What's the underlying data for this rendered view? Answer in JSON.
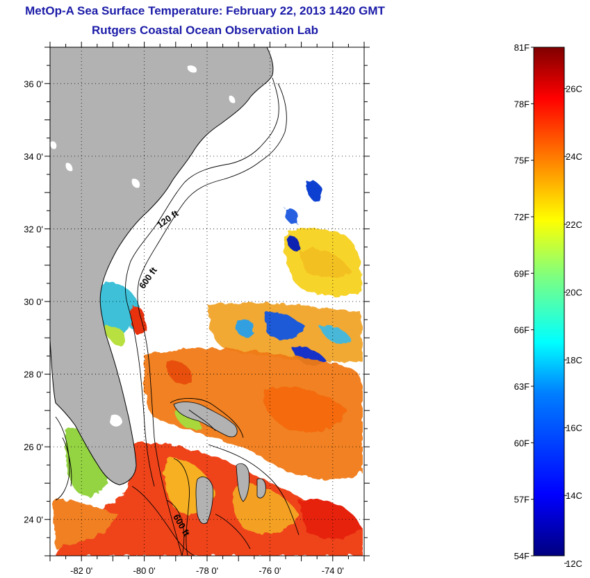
{
  "header": {
    "title": "MetOp-A Sea Surface Temperature:  February 22, 2013 1420 GMT",
    "subtitle": "Rutgers Coastal Ocean Observation Lab"
  },
  "map": {
    "lon_range": [
      -83,
      -73
    ],
    "lat_range": [
      23,
      37
    ],
    "lon_ticks": [
      {
        "value": -82,
        "label": "-82 0'"
      },
      {
        "value": -80,
        "label": "-80 0'"
      },
      {
        "value": -78,
        "label": "-78 0'"
      },
      {
        "value": -76,
        "label": "-76 0'"
      },
      {
        "value": -74,
        "label": "-74 0'"
      }
    ],
    "lat_ticks": [
      {
        "value": 24,
        "label": "24 0'"
      },
      {
        "value": 26,
        "label": "26 0'"
      },
      {
        "value": 28,
        "label": "28 0'"
      },
      {
        "value": 30,
        "label": "30 0'"
      },
      {
        "value": 32,
        "label": "32 0'"
      },
      {
        "value": 34,
        "label": "34 0'"
      },
      {
        "value": 36,
        "label": "36 0'"
      }
    ],
    "grid": true,
    "land_color": "#b2b2b2",
    "contour_labels": [
      {
        "text": "120 ft",
        "lon": -79.2,
        "lat": 32.2
      },
      {
        "text": "600 ft",
        "lon": -79.8,
        "lat": 30.6
      },
      {
        "text": "600 ft",
        "lon": -78.9,
        "lat": 23.8
      }
    ]
  },
  "colorbar": {
    "min_f": 54,
    "max_f": 81,
    "fahrenheit_labels": [
      "81F",
      "78F",
      "75F",
      "72F",
      "69F",
      "66F",
      "63F",
      "60F",
      "57F",
      "54F"
    ],
    "celsius_labels": [
      "26C",
      "24C",
      "22C",
      "20C",
      "18C",
      "16C",
      "14C",
      "12C"
    ],
    "celsius_values": [
      26,
      24,
      22,
      20,
      18,
      16,
      14,
      12
    ],
    "colors": [
      "#00007f",
      "#0000ff",
      "#007fff",
      "#00ffff",
      "#7fff7f",
      "#ffff00",
      "#ff7f00",
      "#ff0000",
      "#7f0000"
    ]
  }
}
